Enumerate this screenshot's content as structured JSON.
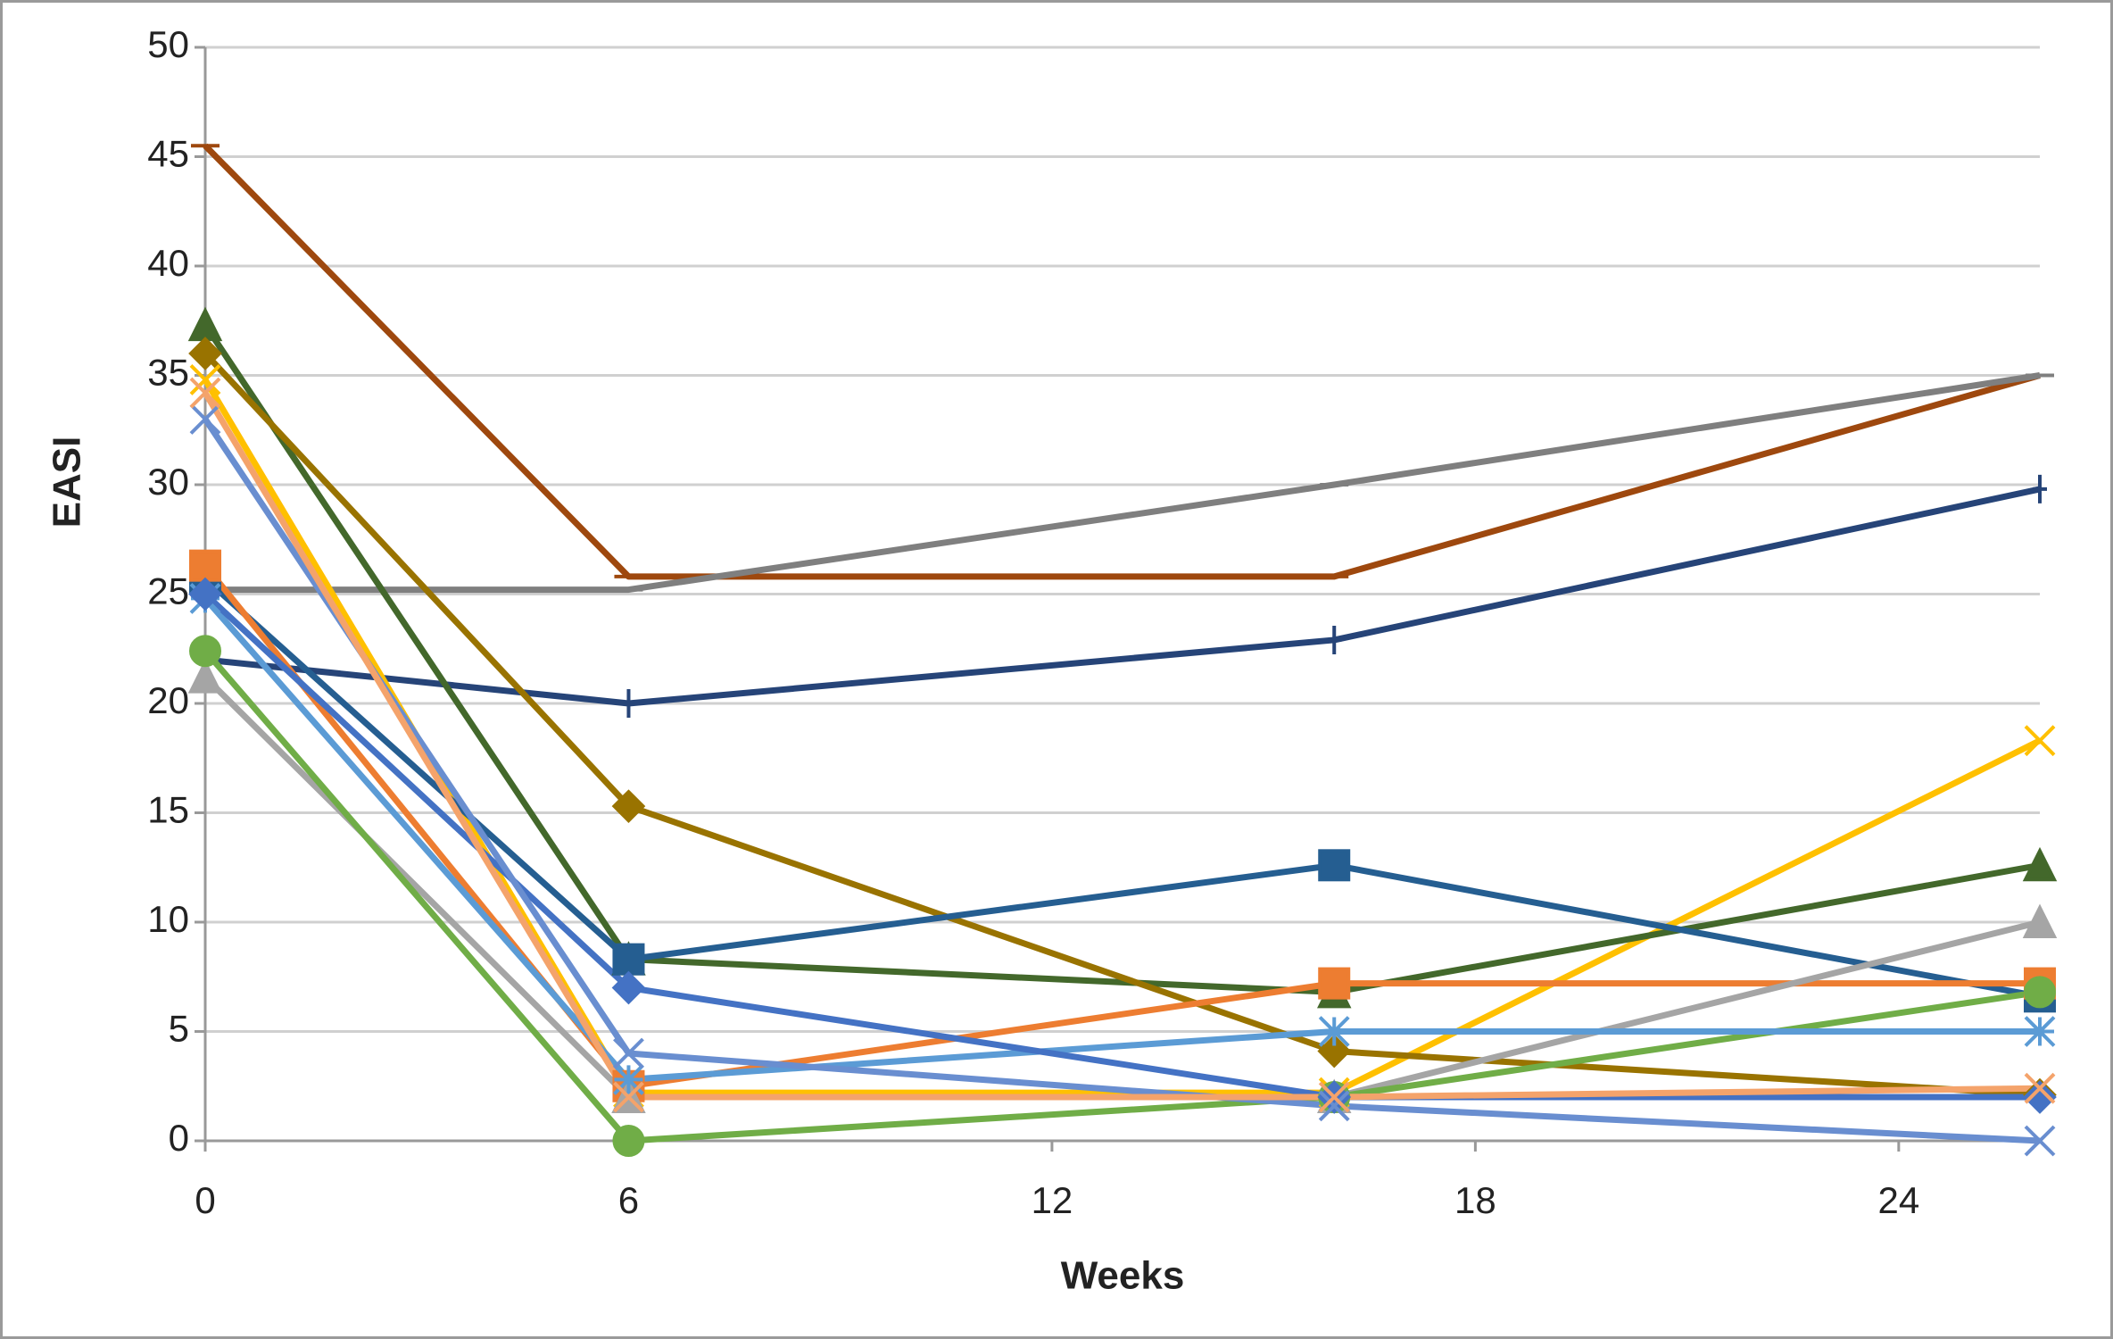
{
  "chart_data": {
    "type": "line",
    "xlabel": "Weeks",
    "ylabel": "EASI",
    "xlim": [
      0,
      26
    ],
    "xticks": [
      0,
      6,
      12,
      18,
      24
    ],
    "ylim": [
      0,
      50
    ],
    "yticks": [
      0,
      5,
      10,
      15,
      20,
      25,
      30,
      35,
      40,
      45,
      50
    ],
    "grid": true,
    "x": [
      0,
      6,
      16,
      26
    ],
    "series": [
      {
        "color": "#9e480e",
        "marker": "dash",
        "values": [
          45.5,
          25.8,
          25.8,
          35
        ]
      },
      {
        "color": "#7f7f7f",
        "marker": "dash",
        "values": [
          25.2,
          25.2,
          30,
          35
        ]
      },
      {
        "color": "#264478",
        "marker": "plus",
        "values": [
          22,
          20,
          22.9,
          29.8
        ]
      },
      {
        "color": "#ffc000",
        "marker": "x",
        "values": [
          34.8,
          2.2,
          2.2,
          18.3
        ]
      },
      {
        "color": "#43682b",
        "marker": "triangle",
        "values": [
          37.3,
          8.3,
          6.8,
          12.6
        ]
      },
      {
        "color": "#997300",
        "marker": "diamond",
        "values": [
          36,
          15.3,
          4.1,
          2.1
        ]
      },
      {
        "color": "#255e91",
        "marker": "square",
        "values": [
          25.7,
          8.3,
          12.6,
          6.6
        ]
      },
      {
        "color": "#ed7d31",
        "marker": "square",
        "values": [
          26.3,
          2.5,
          7.2,
          7.2
        ]
      },
      {
        "color": "#a5a5a5",
        "marker": "triangle",
        "values": [
          21.2,
          2,
          2,
          10
        ]
      },
      {
        "color": "#70ad47",
        "marker": "circle",
        "values": [
          22.4,
          0,
          2,
          6.8
        ]
      },
      {
        "color": "#5b9bd5",
        "marker": "asterisk",
        "values": [
          24.8,
          2.8,
          5,
          5
        ]
      },
      {
        "color": "#4472c4",
        "marker": "diamond",
        "values": [
          25,
          7,
          2,
          2
        ]
      },
      {
        "color": "#698ed0",
        "marker": "x",
        "values": [
          33,
          4,
          1.6,
          0
        ]
      },
      {
        "color": "#f4a36b",
        "marker": "x",
        "values": [
          34.2,
          2,
          2,
          2.4
        ]
      }
    ]
  }
}
